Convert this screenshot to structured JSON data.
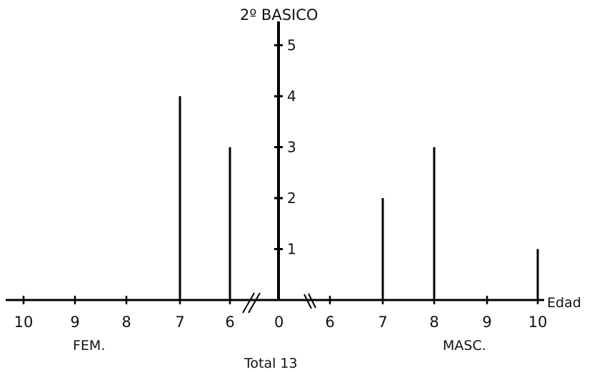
{
  "chart_data": {
    "type": "bar",
    "title": "2º BASICO",
    "xlabel": "Edad",
    "ylabel": "",
    "ylim": [
      0,
      5
    ],
    "yticks": [
      1,
      2,
      3,
      4,
      5
    ],
    "female": {
      "label": "FEM.",
      "ages": [
        10,
        9,
        8,
        7,
        6
      ],
      "values": [
        0,
        0,
        0,
        4,
        3
      ]
    },
    "male": {
      "label": "MASC.",
      "ages": [
        6,
        7,
        8,
        9,
        10
      ],
      "values": [
        0,
        2,
        3,
        0,
        1
      ]
    },
    "center_label": "0",
    "axis_break": true,
    "total_label": "Total 13",
    "grid": false
  }
}
